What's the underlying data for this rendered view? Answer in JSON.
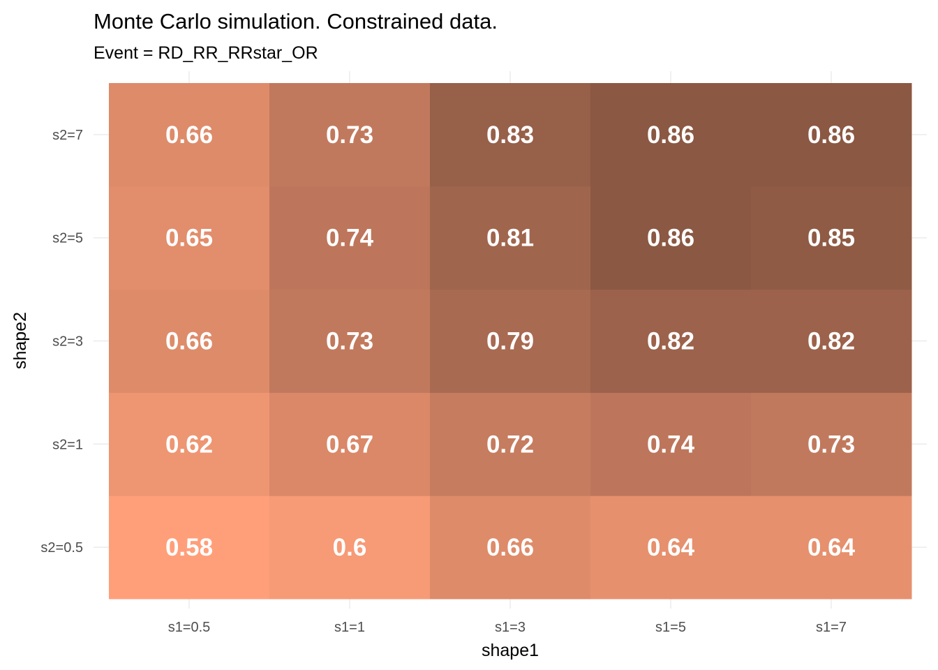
{
  "chart_data": {
    "type": "heatmap",
    "title": "Monte Carlo simulation. Constrained data.",
    "subtitle": "Event =  RD_RR_RRstar_OR",
    "xlabel": "shape1",
    "ylabel": "shape2",
    "x_categories": [
      "s1=0.5",
      "s1=1",
      "s1=3",
      "s1=5",
      "s1=7"
    ],
    "y_categories": [
      "s2=0.5",
      "s2=1",
      "s2=3",
      "s2=5",
      "s2=7"
    ],
    "values": [
      [
        0.58,
        0.6,
        0.66,
        0.64,
        0.64
      ],
      [
        0.62,
        0.67,
        0.72,
        0.74,
        0.73
      ],
      [
        0.66,
        0.73,
        0.79,
        0.82,
        0.82
      ],
      [
        0.65,
        0.74,
        0.81,
        0.86,
        0.85
      ],
      [
        0.66,
        0.73,
        0.83,
        0.86,
        0.86
      ]
    ],
    "labels": [
      [
        "0.58",
        "0.6",
        "0.66",
        "0.64",
        "0.64"
      ],
      [
        "0.62",
        "0.67",
        "0.72",
        "0.74",
        "0.73"
      ],
      [
        "0.66",
        "0.73",
        "0.79",
        "0.82",
        "0.82"
      ],
      [
        "0.65",
        "0.74",
        "0.81",
        "0.86",
        "0.85"
      ],
      [
        "0.66",
        "0.73",
        "0.83",
        "0.86",
        "0.86"
      ]
    ],
    "color_scale": {
      "low_value": 0.58,
      "high_value": 0.86,
      "low_color": "#ff9f7a",
      "high_color": "#8b5843"
    },
    "cell_label_color": "#ffffff",
    "grid": true,
    "legend": "none"
  }
}
